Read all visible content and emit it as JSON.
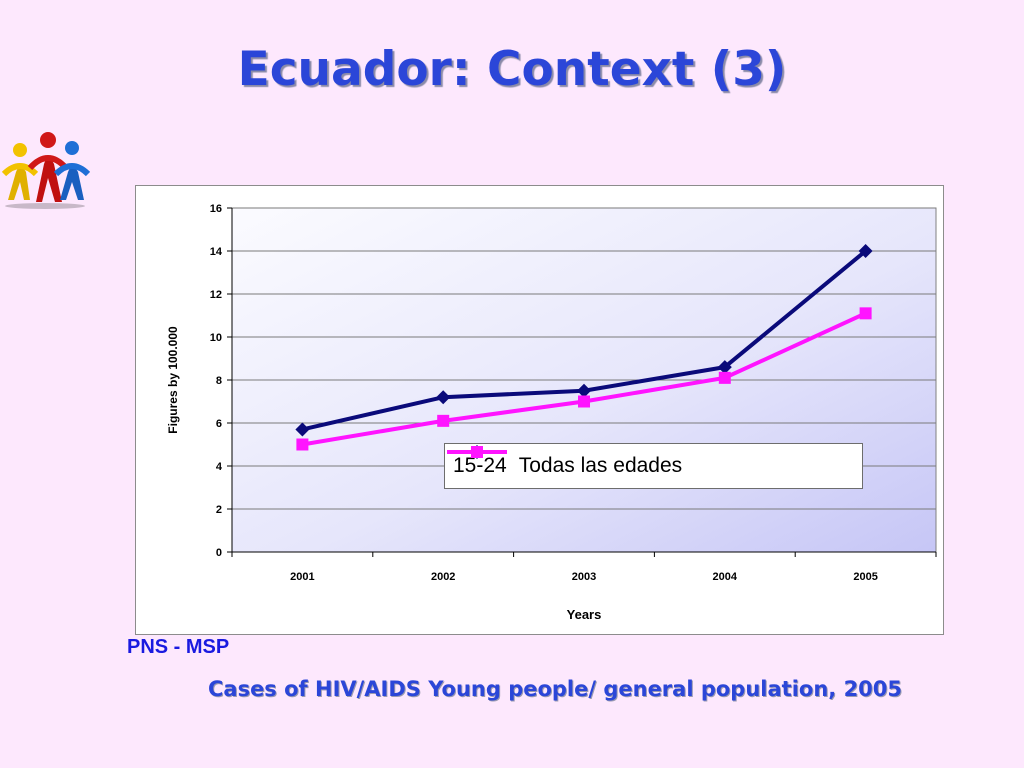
{
  "slide": {
    "title": "Ecuador: Context (3)",
    "source": "PNS - MSP",
    "caption": "Cases of HIV/AIDS Young people/ general population, 2005"
  },
  "logo": {
    "icon": "ribbon-people-icon"
  },
  "chart_data": {
    "type": "line",
    "categories": [
      "2001",
      "2002",
      "2003",
      "2004",
      "2005"
    ],
    "series": [
      {
        "name": "15-24",
        "values": [
          5.7,
          7.2,
          7.5,
          8.6,
          14.0
        ],
        "color": "#0a0a7a",
        "marker": "diamond"
      },
      {
        "name": "Todas las edades",
        "values": [
          5.0,
          6.1,
          7.0,
          8.1,
          11.1
        ],
        "color": "#ff14ff",
        "marker": "square"
      }
    ],
    "xlabel": "Years",
    "ylabel": "Figures by 100.000",
    "ylim": [
      0,
      16
    ],
    "yticks": [
      0,
      2,
      4,
      6,
      8,
      10,
      12,
      14,
      16
    ],
    "grid": true,
    "legend_position": "lower-right"
  }
}
